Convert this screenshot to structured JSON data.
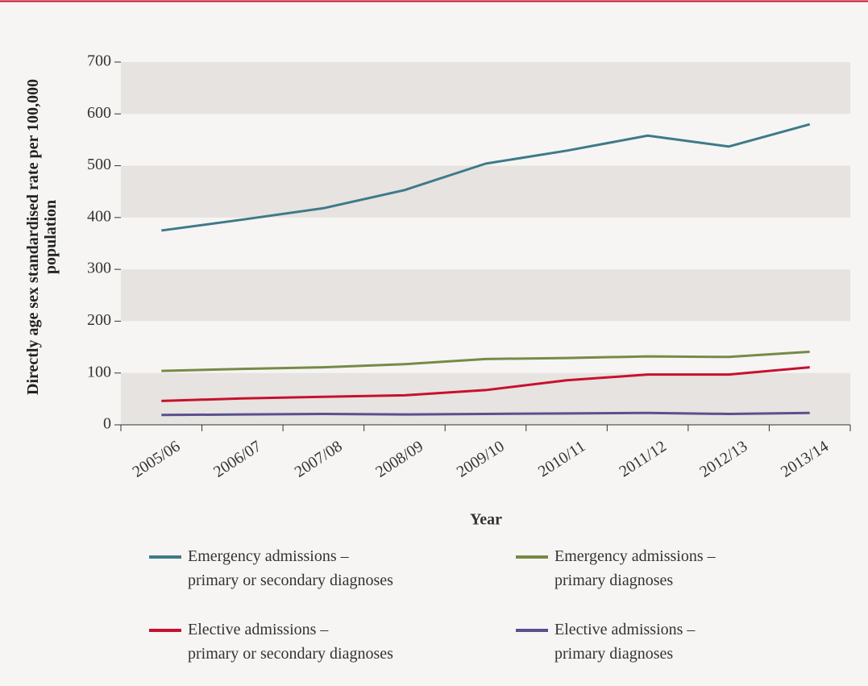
{
  "chart_data": {
    "type": "line",
    "y_label": "Directly age sex standardised rate per 100,000 population",
    "x_label": "Year",
    "categories": [
      "2005/06",
      "2006/07",
      "2007/08",
      "2008/09",
      "2009/10",
      "2010/11",
      "2011/12",
      "2012/13",
      "2013/14"
    ],
    "series": [
      {
        "name": "Emergency admissions –\nprimary or secondary diagnoses",
        "color": "#3e7a89",
        "values": [
          375,
          396,
          418,
          453,
          504,
          529,
          558,
          537,
          580
        ]
      },
      {
        "name": "Emergency admissions –\nprimary diagnoses",
        "color": "#778a47",
        "values": [
          104,
          108,
          111,
          117,
          127,
          129,
          132,
          131,
          141
        ]
      },
      {
        "name": "Elective admissions –\nprimary or secondary diagnoses",
        "color": "#c8102e",
        "values": [
          46,
          51,
          54,
          57,
          67,
          86,
          97,
          97,
          111
        ]
      },
      {
        "name": "Elective admissions –\nprimary diagnoses",
        "color": "#5c4f8e",
        "values": [
          19,
          20,
          21,
          20,
          21,
          22,
          23,
          21,
          23
        ]
      }
    ],
    "ylim": [
      0,
      700
    ],
    "yticks": [
      0,
      100,
      200,
      300,
      400,
      500,
      600,
      700
    ],
    "bands": true
  }
}
